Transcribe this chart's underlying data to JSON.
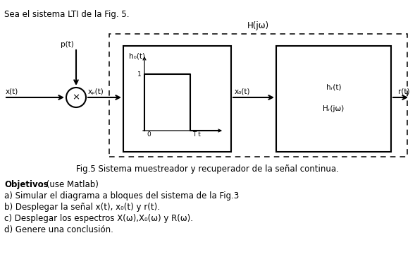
{
  "title_top": "Sea el sistema LTI de la Fig. 5.",
  "caption": "Fig.5 Sistema muestreador y recuperador de la señal continua.",
  "objectives_bold": "Objetivos",
  "objectives_rest": ": (use Matlab)",
  "obj_a": "a) Simular el diagrama a bloques del sistema de la Fig.3",
  "obj_b": "b) Desplegar la señal x(t), x₀(t) y r(t).",
  "obj_c": "c) Desplegar los espectros X(ω),X₀(ω) y R(ω).",
  "obj_d": "d) Genere una conclusión.",
  "label_Hjw": "H(jω)",
  "label_pt": "p(t)",
  "label_xt": "x(t)",
  "label_xpt": "xₚ(t)",
  "label_h0t": "h₀(t)",
  "label_x0t": "x₀(t)",
  "label_hrt": "hᵣ(t)",
  "label_Hrjw": "Hᵣ(jω)",
  "label_rt": "r(t)",
  "label_1": "1",
  "label_0": "0",
  "label_Tt": "T t",
  "bg_color": "#ffffff",
  "text_color": "#000000"
}
